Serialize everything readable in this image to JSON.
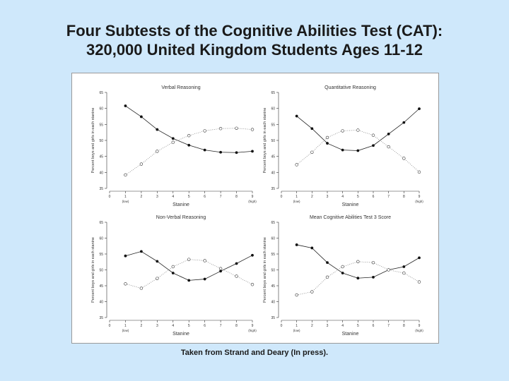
{
  "title_line1": "Four Subtests of the Cognitive Abilities Test (CAT):",
  "title_line2": "320,000 United Kingdom Students Ages 11-12",
  "caption": "Taken from Strand and Deary (In press).",
  "chart_data": [
    {
      "type": "line",
      "title": "Verbal Reasoning",
      "xlabel": "Stanine",
      "ylabel": "Percent boys and girls in each stanine",
      "x": [
        1,
        2,
        3,
        4,
        5,
        6,
        7,
        8,
        9
      ],
      "xticks": [
        "0",
        "1",
        "2",
        "3",
        "4",
        "5",
        "6",
        "7",
        "8",
        "9"
      ],
      "x_sublabels": {
        "1": "(low)",
        "9": "(high)"
      },
      "ylim": [
        35,
        65
      ],
      "yticks": [
        35,
        40,
        45,
        50,
        55,
        60,
        65
      ],
      "series": [
        {
          "marker": "filled",
          "values": [
            60.8,
            57.4,
            53.4,
            50.6,
            48.5,
            47.0,
            46.3,
            46.2,
            46.6
          ]
        },
        {
          "marker": "open",
          "values": [
            39.2,
            42.6,
            46.6,
            49.4,
            51.5,
            53.0,
            53.7,
            53.8,
            53.4
          ]
        }
      ]
    },
    {
      "type": "line",
      "title": "Quantitative Reasoning",
      "xlabel": "Stanine",
      "ylabel": "Percent boys and girls in each stanine",
      "x": [
        1,
        2,
        3,
        4,
        5,
        6,
        7,
        8,
        9
      ],
      "xticks": [
        "0",
        "1",
        "2",
        "3",
        "4",
        "5",
        "6",
        "7",
        "8",
        "9"
      ],
      "x_sublabels": {
        "1": "(low)",
        "9": "(high)"
      },
      "ylim": [
        35,
        65
      ],
      "yticks": [
        35,
        40,
        45,
        50,
        55,
        60,
        65
      ],
      "series": [
        {
          "marker": "filled",
          "values": [
            57.6,
            53.7,
            49.1,
            47.0,
            46.8,
            48.4,
            52.0,
            55.6,
            59.9
          ]
        },
        {
          "marker": "open",
          "values": [
            42.4,
            46.3,
            50.9,
            53.0,
            53.2,
            51.6,
            48.0,
            44.4,
            40.1
          ]
        }
      ]
    },
    {
      "type": "line",
      "title": "Non-Verbal Reasoning",
      "xlabel": "Stanine",
      "ylabel": "Percent boys and girls in each stanine",
      "x": [
        1,
        2,
        3,
        4,
        5,
        6,
        7,
        8,
        9
      ],
      "xticks": [
        "0",
        "1",
        "2",
        "3",
        "4",
        "5",
        "6",
        "7",
        "8",
        "9"
      ],
      "x_sublabels": {
        "1": "(low)",
        "9": "(high)"
      },
      "ylim": [
        35,
        65
      ],
      "yticks": [
        35,
        40,
        45,
        50,
        55,
        60,
        65
      ],
      "series": [
        {
          "marker": "filled",
          "values": [
            54.4,
            55.8,
            52.7,
            49.0,
            46.7,
            47.1,
            49.6,
            52.0,
            54.6
          ]
        },
        {
          "marker": "open",
          "values": [
            45.6,
            44.2,
            47.3,
            51.0,
            53.3,
            52.9,
            50.4,
            48.0,
            45.4
          ]
        }
      ]
    },
    {
      "type": "line",
      "title": "Mean Cognitive Abilities Test 3 Score",
      "xlabel": "Stanine",
      "ylabel": "Percent boys and girls in each stanine",
      "x": [
        1,
        2,
        3,
        4,
        5,
        6,
        7,
        8,
        9
      ],
      "xticks": [
        "0",
        "1",
        "2",
        "3",
        "4",
        "5",
        "6",
        "7",
        "8",
        "9"
      ],
      "x_sublabels": {
        "1": "(low)",
        "9": "(high)"
      },
      "ylim": [
        35,
        65
      ],
      "yticks": [
        35,
        40,
        45,
        50,
        55,
        60,
        65
      ],
      "series": [
        {
          "marker": "filled",
          "values": [
            57.9,
            56.9,
            52.3,
            49.0,
            47.4,
            47.7,
            50.0,
            51.0,
            53.8
          ]
        },
        {
          "marker": "open",
          "values": [
            42.1,
            43.1,
            47.7,
            51.0,
            52.6,
            52.3,
            50.0,
            49.0,
            46.2
          ]
        }
      ]
    }
  ]
}
